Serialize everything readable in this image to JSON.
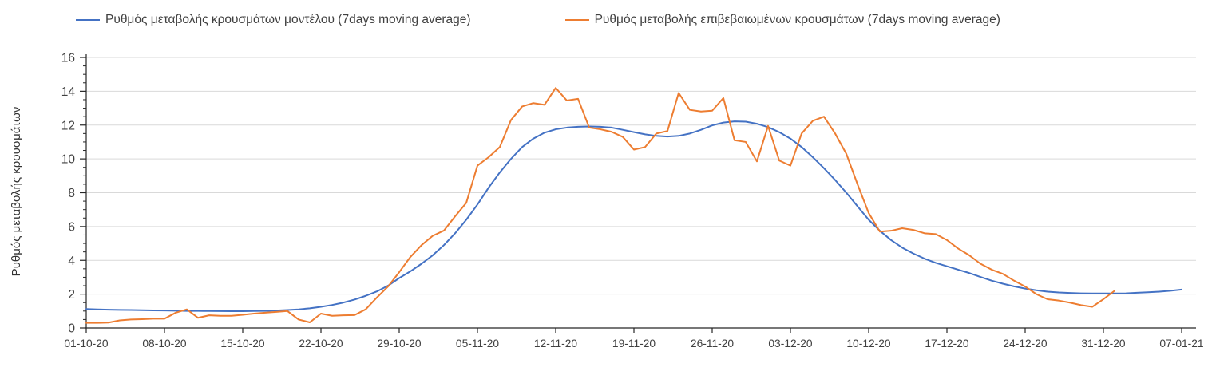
{
  "chart_data": {
    "type": "line",
    "title": "",
    "ylabel": "Ρυθμός μεταβολής κρουσμάτων",
    "xlabel": "",
    "ylim": [
      0,
      16
    ],
    "y_ticks": [
      0,
      2,
      4,
      6,
      8,
      10,
      12,
      14,
      16
    ],
    "y_minor_tick_step": 0.5,
    "grid": true,
    "legend_position": "top",
    "x_tick_labels": [
      "01-10-20",
      "08-10-20",
      "15-10-20",
      "22-10-20",
      "29-10-20",
      "05-11-20",
      "12-11-20",
      "19-11-20",
      "26-11-20",
      "03-12-20",
      "10-12-20",
      "17-12-20",
      "24-12-20",
      "31-12-20",
      "07-01-21"
    ],
    "x_days_per_tick": 7,
    "series": [
      {
        "name": "Ρυθμός μεταβολής κρουσμάτων μοντέλου (7days moving average)",
        "color": "#4472C4",
        "values": [
          1.12,
          1.1,
          1.08,
          1.07,
          1.06,
          1.05,
          1.04,
          1.03,
          1.02,
          1.01,
          1.01,
          1.0,
          1.0,
          0.99,
          0.99,
          1.0,
          1.01,
          1.03,
          1.06,
          1.1,
          1.16,
          1.25,
          1.36,
          1.5,
          1.68,
          1.9,
          2.16,
          2.5,
          2.95,
          3.35,
          3.8,
          4.3,
          4.9,
          5.6,
          6.4,
          7.3,
          8.3,
          9.2,
          10.0,
          10.7,
          11.2,
          11.55,
          11.75,
          11.85,
          11.9,
          11.92,
          11.9,
          11.85,
          11.72,
          11.58,
          11.45,
          11.36,
          11.32,
          11.36,
          11.5,
          11.72,
          11.98,
          12.15,
          12.22,
          12.2,
          12.08,
          11.88,
          11.58,
          11.2,
          10.7,
          10.1,
          9.45,
          8.75,
          8.0,
          7.2,
          6.4,
          5.75,
          5.2,
          4.75,
          4.4,
          4.1,
          3.85,
          3.65,
          3.45,
          3.25,
          3.02,
          2.8,
          2.62,
          2.46,
          2.33,
          2.23,
          2.15,
          2.1,
          2.07,
          2.05,
          2.04,
          2.04,
          2.04,
          2.05,
          2.08,
          2.11,
          2.15,
          2.2,
          2.27
        ]
      },
      {
        "name": "Ρυθμός μεταβολής επιβεβαιωμένων κρουσμάτων (7days moving average)",
        "color": "#ED7D31",
        "values": [
          0.3,
          0.3,
          0.32,
          0.45,
          0.5,
          0.52,
          0.55,
          0.55,
          0.9,
          1.1,
          0.6,
          0.75,
          0.72,
          0.72,
          0.78,
          0.85,
          0.9,
          0.95,
          1.0,
          0.5,
          0.33,
          0.85,
          0.72,
          0.75,
          0.76,
          1.1,
          1.8,
          2.45,
          3.3,
          4.2,
          4.9,
          5.45,
          5.76,
          6.6,
          7.4,
          9.6,
          10.1,
          10.7,
          12.3,
          13.1,
          13.3,
          13.2,
          14.2,
          13.45,
          13.55,
          11.85,
          11.75,
          11.6,
          11.3,
          10.55,
          10.7,
          11.5,
          11.65,
          13.9,
          12.9,
          12.8,
          12.85,
          13.6,
          11.1,
          11.0,
          9.85,
          11.95,
          9.9,
          9.6,
          11.5,
          12.25,
          12.5,
          11.5,
          10.3,
          8.5,
          6.8,
          5.7,
          5.75,
          5.9,
          5.8,
          5.6,
          5.55,
          5.2,
          4.7,
          4.3,
          3.8,
          3.45,
          3.2,
          2.8,
          2.45,
          2.0,
          1.7,
          1.62,
          1.5,
          1.35,
          1.25,
          1.7,
          2.2
        ]
      }
    ],
    "colors": {
      "gridline": "#D9D9D9",
      "axis_line": "#262626",
      "tick_text": "#404040"
    }
  }
}
